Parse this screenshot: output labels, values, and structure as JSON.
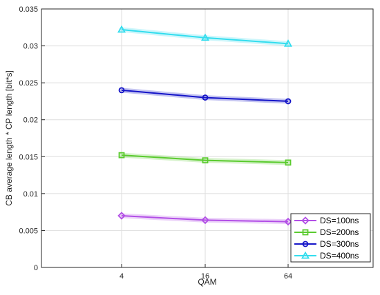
{
  "chart_data": {
    "type": "line",
    "title": "",
    "xlabel": "QAM",
    "ylabel": "CB average length * CP length [bit*s]",
    "x_ticks": [
      "4",
      "16",
      "64"
    ],
    "x_categories": [
      4,
      16,
      64
    ],
    "ylim": [
      0,
      0.035
    ],
    "y_ticks": [
      0,
      0.005,
      0.01,
      0.015,
      0.02,
      0.025,
      0.03,
      0.035
    ],
    "y_tick_labels": [
      "0",
      "0.005",
      "0.01",
      "0.015",
      "0.02",
      "0.025",
      "0.03",
      "0.035"
    ],
    "grid": true,
    "legend_position": "bottom-right",
    "series": [
      {
        "name": "DS=100ns",
        "values": [
          0.007,
          0.0064,
          0.0062
        ],
        "color": "#b24ee6",
        "marker": "diamond"
      },
      {
        "name": "DS=200ns",
        "values": [
          0.0152,
          0.0145,
          0.0142
        ],
        "color": "#5acb2e",
        "marker": "square"
      },
      {
        "name": "DS=300ns",
        "values": [
          0.024,
          0.023,
          0.0225
        ],
        "color": "#1414c8",
        "marker": "circle"
      },
      {
        "name": "DS=400ns",
        "values": [
          0.0322,
          0.0311,
          0.0303
        ],
        "color": "#33ddee",
        "marker": "triangle"
      }
    ]
  }
}
